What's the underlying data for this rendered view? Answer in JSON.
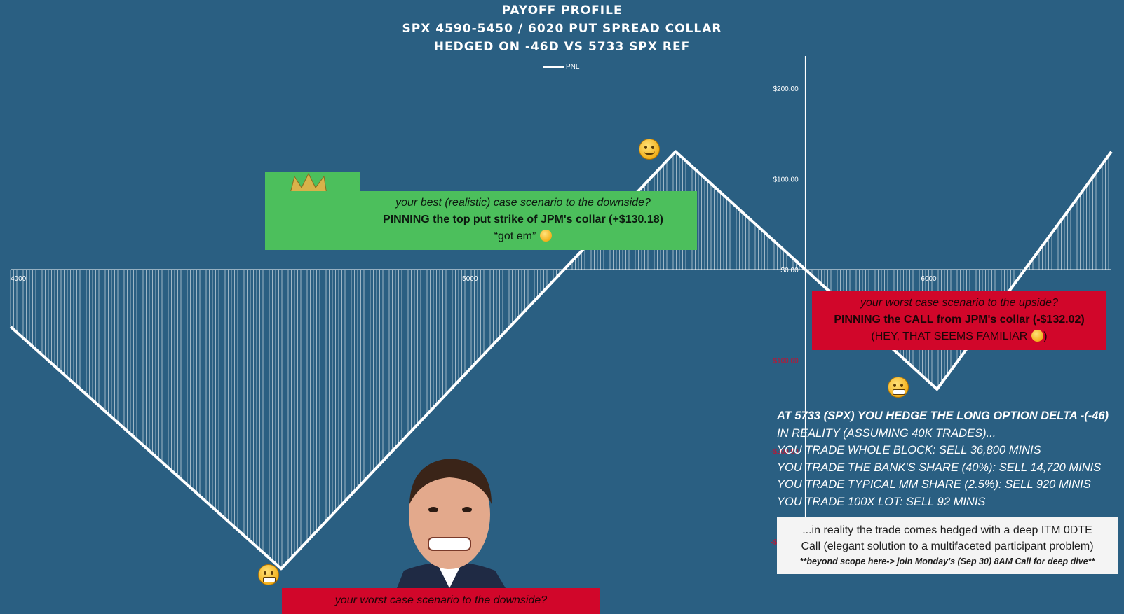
{
  "titles": {
    "line1": "PAYOFF PROFILE",
    "line2": "SPX 4590-5450 / 6020 PUT SPREAD COLLAR",
    "line3": "HEDGED ON -46D VS 5733 SPX REF"
  },
  "legend": {
    "label": "PNL"
  },
  "chart_data": {
    "type": "area",
    "series": [
      {
        "name": "PNL",
        "x": [
          4000,
          4590,
          5450,
          5733,
          6020,
          6400
        ],
        "y": [
          -63,
          -330,
          130.18,
          0,
          -132.02,
          130
        ],
        "color": "#ffffff"
      }
    ],
    "x_tick_labels": [
      "4000",
      "5000",
      "6000"
    ],
    "x_ticks": [
      4000,
      5000,
      6000
    ],
    "y_tick_labels": [
      "$200.00",
      "$100.00",
      "$0.00",
      "-$100.00",
      "-$200.00",
      "-$300.00"
    ],
    "y_ticks": [
      200,
      100,
      0,
      -100,
      -200,
      -300
    ],
    "xlim": [
      4000,
      6400
    ],
    "ylim": [
      -330,
      230
    ],
    "grid": false,
    "legend": "top-center",
    "colors": {
      "background": "#2a5f82",
      "line": "#ffffff",
      "negative_tick_labels": "#c8102e"
    }
  },
  "annotations": {
    "best_case": {
      "line1": "your best (realistic) case scenario to the downside?",
      "line2": "PINNING the top put strike of JPM's collar (+$130.18)",
      "line3": "“got em”",
      "color": "#4cbf5c"
    },
    "worst_up": {
      "line1": "your worst case scenario to the upside?",
      "line2": "PINNING the CALL from JPM's collar (-$132.02)",
      "line3": "(HEY, THAT SEEMS FAMILIAR",
      "line3_end": ")",
      "color": "#d1062a"
    },
    "worst_down": {
      "line1": "your worst case scenario to the downside?",
      "color": "#d1062a"
    },
    "hedge_lines": [
      "AT 5733 (SPX) YOU HEDGE THE LONG OPTION DELTA -(-46)",
      "IN REALITY (ASSUMING 40K TRADES)...",
      "YOU TRADE WHOLE BLOCK: SELL 36,800 MINIS",
      "YOU TRADE THE BANK'S SHARE (40%): SELL 14,720 MINIS",
      "YOU TRADE TYPICAL MM SHARE (2.5%): SELL 920 MINIS",
      "YOU TRADE 100X LOT: SELL 92 MINIS"
    ],
    "note": {
      "line1": "...in reality the trade comes hedged with a deep ITM 0DTE",
      "line2": "Call (elegant solution to a multifaceted participant problem)",
      "line3": "**beyond scope here-> join Monday's (Sep 30) 8AM Call for deep dive**"
    }
  },
  "icons": {
    "peak_emoji": "smirking-face-icon",
    "valley_emoji": "grimacing-face-icon",
    "king_photo": "crowned-man-photo",
    "grimace_photo": "grimacing-man-photo"
  }
}
